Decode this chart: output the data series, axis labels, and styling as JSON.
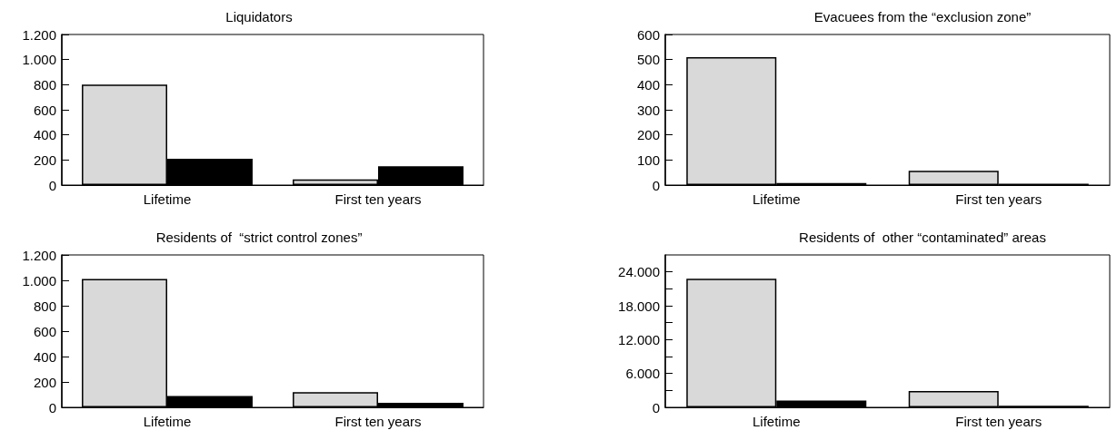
{
  "chart_data": [
    {
      "type": "bar",
      "title": "Liquidators",
      "categories": [
        "Lifetime",
        "First ten years"
      ],
      "series": [
        {
          "color": "#d9d9d9",
          "values": [
            800,
            45
          ]
        },
        {
          "color": "#000000",
          "values": [
            210,
            150
          ]
        }
      ],
      "ylim": [
        0,
        1200
      ],
      "yticks": [
        0,
        200,
        400,
        600,
        800,
        {
          "value": 1000,
          "label": "1.000"
        },
        {
          "value": 1200,
          "label": "1.200"
        }
      ]
    },
    {
      "type": "bar",
      "title": "Evacuees from the “exclusion zone”",
      "categories": [
        "Lifetime",
        "First ten years"
      ],
      "series": [
        {
          "color": "#d9d9d9",
          "values": [
            510,
            57
          ]
        },
        {
          "color": "#000000",
          "values": [
            8,
            5
          ]
        }
      ],
      "ylim": [
        0,
        600
      ],
      "yticks": [
        0,
        100,
        200,
        300,
        400,
        500,
        600
      ]
    },
    {
      "type": "bar",
      "title": "Residents of  “strict control zones”",
      "categories": [
        "Lifetime",
        "First ten years"
      ],
      "series": [
        {
          "color": "#d9d9d9",
          "values": [
            1010,
            120
          ]
        },
        {
          "color": "#000000",
          "values": [
            90,
            35
          ]
        }
      ],
      "ylim": [
        0,
        1200
      ],
      "yticks": [
        0,
        200,
        400,
        600,
        800,
        {
          "value": 1000,
          "label": "1.000"
        },
        {
          "value": 1200,
          "label": "1.200"
        }
      ]
    },
    {
      "type": "bar",
      "title": "Residents of  other “contaminated” areas",
      "categories": [
        "Lifetime",
        "First ten years"
      ],
      "series": [
        {
          "color": "#d9d9d9",
          "values": [
            22800,
            2900
          ]
        },
        {
          "color": "#000000",
          "values": [
            1200,
            300
          ]
        }
      ],
      "ylim": [
        0,
        27000
      ],
      "yticks": [
        0,
        {
          "value": 3000,
          "label": null
        },
        {
          "value": 6000,
          "label": "6.000"
        },
        {
          "value": 9000,
          "label": null
        },
        {
          "value": 12000,
          "label": "12.000"
        },
        {
          "value": 15000,
          "label": null
        },
        {
          "value": 18000,
          "label": "18.000"
        },
        {
          "value": 21000,
          "label": null
        },
        {
          "value": 24000,
          "label": "24.000"
        }
      ]
    }
  ]
}
